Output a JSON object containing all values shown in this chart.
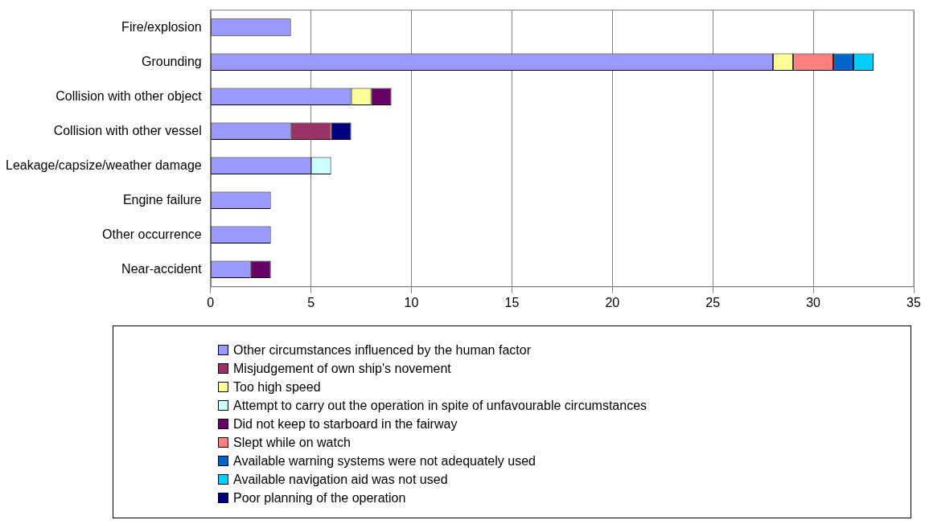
{
  "chart_data": {
    "type": "bar",
    "orientation": "horizontal",
    "stacked": true,
    "categories": [
      "Fire/explosion",
      "Grounding",
      "Collision with other object",
      "Collision with other vessel",
      "Leakage/capsize/weather damage",
      "Engine failure",
      "Other occurrence",
      "Near-accident"
    ],
    "series": [
      {
        "name": "Other circumstances influenced by the human factor",
        "color": "#9999ff",
        "values": [
          4,
          28,
          7,
          4,
          5,
          3,
          3,
          2
        ]
      },
      {
        "name": "Misjudgement of own ship's novement",
        "color": "#993366",
        "values": [
          null,
          null,
          null,
          2,
          null,
          null,
          null,
          null
        ]
      },
      {
        "name": "Too high speed",
        "color": "#ffff99",
        "values": [
          null,
          1,
          1,
          null,
          null,
          null,
          null,
          null
        ]
      },
      {
        "name": "Attempt to carry out the operation in spite of unfavourable circumstances",
        "color": "#ccffff",
        "values": [
          null,
          null,
          null,
          null,
          1,
          null,
          null,
          null
        ]
      },
      {
        "name": "Did not keep to starboard in the fairway",
        "color": "#660066",
        "values": [
          null,
          null,
          1,
          null,
          null,
          null,
          null,
          1
        ]
      },
      {
        "name": "Slept while on watch",
        "color": "#ff8080",
        "values": [
          null,
          2,
          null,
          null,
          null,
          null,
          null,
          null
        ]
      },
      {
        "name": "Available warning systems were not adequately used",
        "color": "#0066cc",
        "values": [
          null,
          1,
          null,
          null,
          null,
          null,
          null,
          null
        ]
      },
      {
        "name": "Available navigation aid was not used",
        "color": "#00ccff",
        "values": [
          null,
          1,
          null,
          null,
          null,
          null,
          null,
          null
        ]
      },
      {
        "name": "Poor planning of the operation",
        "color": "#000080",
        "values": [
          null,
          null,
          null,
          1,
          null,
          null,
          null,
          null
        ]
      }
    ],
    "xlim": [
      0,
      35
    ],
    "xticks": [
      0,
      5,
      10,
      15,
      20,
      25,
      30,
      35
    ],
    "grid": "x",
    "legend": "bottom"
  }
}
